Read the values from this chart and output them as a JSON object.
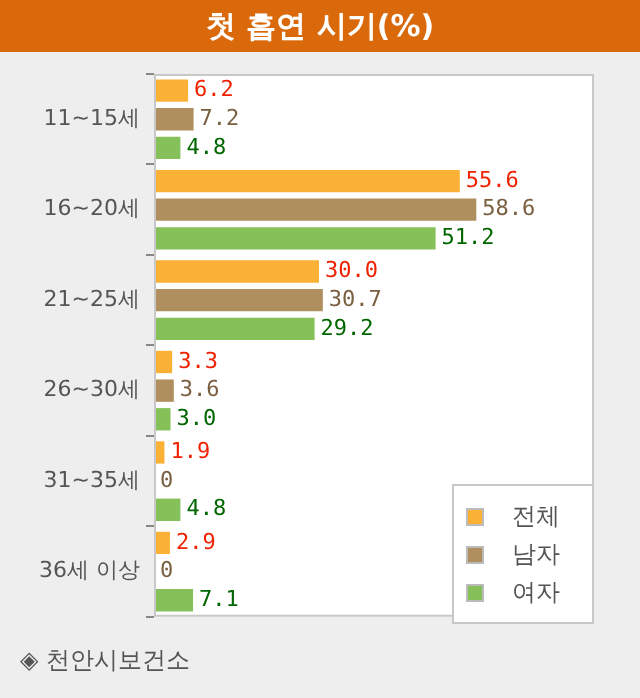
{
  "chart_data": {
    "type": "bar",
    "orientation": "horizontal",
    "title": "첫 흡연 시기(%)",
    "categories": [
      "11~15세",
      "16~20세",
      "21~25세",
      "26~30세",
      "31~35세",
      "36세 이상"
    ],
    "series": [
      {
        "name": "전체",
        "color": "#fbb136",
        "values": [
          6.2,
          55.6,
          30.0,
          3.3,
          1.9,
          2.9
        ],
        "value_labels": [
          "6.2",
          "55.6",
          "30.0",
          "3.3",
          "1.9",
          "2.9"
        ]
      },
      {
        "name": "남자",
        "color": "#b08f5f",
        "values": [
          7.2,
          58.6,
          30.7,
          3.6,
          0,
          0
        ],
        "value_labels": [
          "7.2",
          "58.6",
          "30.7",
          "3.6",
          "0",
          "0"
        ]
      },
      {
        "name": "여자",
        "color": "#86c059",
        "values": [
          4.8,
          51.2,
          29.2,
          3.0,
          4.8,
          7.1
        ],
        "value_labels": [
          "4.8",
          "51.2",
          "29.2",
          "3.0",
          "4.8",
          "7.1"
        ]
      }
    ],
    "legend": "bottom right",
    "annotations": [
      "◈ 천안시보건소"
    ]
  }
}
